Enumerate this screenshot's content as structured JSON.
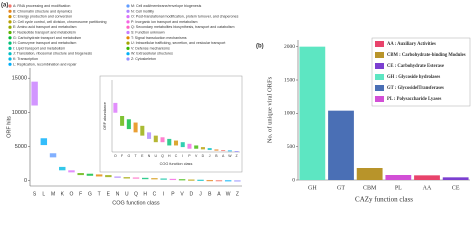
{
  "chart_data": [
    {
      "type": "range",
      "panel_label": "(a)",
      "xlabel": "COG function class",
      "ylabel": "ORF hits",
      "categories": [
        "S",
        "L",
        "M",
        "K",
        "O",
        "F",
        "G",
        "T",
        "E",
        "N",
        "U",
        "Q",
        "H",
        "C",
        "I",
        "P",
        "V",
        "D",
        "J",
        "B",
        "A",
        "W",
        "Z"
      ],
      "low": [
        11000,
        5200,
        3400,
        1500,
        1200,
        800,
        700,
        600,
        500,
        400,
        300,
        300,
        200,
        200,
        150,
        100,
        100,
        80,
        60,
        40,
        30,
        20,
        10
      ],
      "high": [
        14500,
        6200,
        4000,
        2000,
        1500,
        1100,
        1000,
        900,
        800,
        600,
        500,
        450,
        400,
        350,
        300,
        250,
        200,
        150,
        120,
        80,
        60,
        50,
        30
      ],
      "ylim": [
        -800,
        16500
      ],
      "yticks": [
        0,
        5000,
        10000,
        15000
      ],
      "legend": [
        {
          "label": "A: RNA processing and modification",
          "color": "#f4766d"
        },
        {
          "label": "B: Chromatin structure and dynamics",
          "color": "#e7851e"
        },
        {
          "label": "C: Energy production and conversion",
          "color": "#d39200"
        },
        {
          "label": "D: Cell cycle control, cell division, chromosome partitioning",
          "color": "#b79f00"
        },
        {
          "label": "E: Amino acid transport and metabolism",
          "color": "#93aa00"
        },
        {
          "label": "F: Nucleotide transport and metabolism",
          "color": "#5eb300"
        },
        {
          "label": "G: Carbohydrate transport and metabolism",
          "color": "#00ba38"
        },
        {
          "label": "H: Coenzyme transport and metabolism",
          "color": "#00bf74"
        },
        {
          "label": "I: Lipid transport and metabolism",
          "color": "#00c19f"
        },
        {
          "label": "J: Translation, ribosomal structure and biogenesis",
          "color": "#00bfc4"
        },
        {
          "label": "K: Transcription",
          "color": "#00b9e3"
        },
        {
          "label": "L: Replication, recombination and repair",
          "color": "#00adfa"
        },
        {
          "label": "M: Cell wall/membrane/envelope biogenesis",
          "color": "#619cff"
        },
        {
          "label": "N: Cell motility",
          "color": "#ae87ff"
        },
        {
          "label": "O: Post-translational modification, protein turnover, and chaperones",
          "color": "#db72fb"
        },
        {
          "label": "P: Inorganic ion transport and metabolism",
          "color": "#f564e3"
        },
        {
          "label": "Q: Secondary metabolites biosynthesis, transport and catabolism",
          "color": "#ff61c3"
        },
        {
          "label": "S: Function unknown",
          "color": "#c77cff"
        },
        {
          "label": "T: Signal transduction mechanisms",
          "color": "#e58700"
        },
        {
          "label": "U: Intracellular trafficking, secretion, and vesicular transport",
          "color": "#a3a500"
        },
        {
          "label": "V: Defense mechanisms",
          "color": "#39b600"
        },
        {
          "label": "W: Extracellular structures",
          "color": "#00b0f6"
        },
        {
          "label": "Z: Cytoskeleton",
          "color": "#9590ff"
        }
      ],
      "inset": {
        "ylabel": "ORF abundance",
        "xlabel": "COG function class",
        "ylim": [
          0,
          2200
        ]
      }
    },
    {
      "type": "bar",
      "panel_label": "(b)",
      "xlabel": "CAZy function class",
      "ylabel": "No. of unique viral ORFs",
      "categories": [
        "GH",
        "GT",
        "CBM",
        "PL",
        "AA",
        "CE"
      ],
      "values": [
        2000,
        1040,
        180,
        75,
        70,
        40
      ],
      "colors": [
        "#5de6c2",
        "#4a6fb5",
        "#b8942a",
        "#d24fd6",
        "#e8436b",
        "#7b3fd0"
      ],
      "ylim": [
        0,
        2100
      ],
      "yticks": [
        0,
        500,
        1000,
        1500,
        2000
      ],
      "legend": [
        {
          "label": "AA : Auxiliary Activities",
          "color": "#e8436b"
        },
        {
          "label": "CBM : Carbohydrate-binding Modules",
          "color": "#b8942a"
        },
        {
          "label": "CE : Carbohydrate Esterase",
          "color": "#7b3fd0"
        },
        {
          "label": "GH : Glycoside hydrolases",
          "color": "#5de6c2"
        },
        {
          "label": "GT : GlycosidelTransferases",
          "color": "#4a6fb5"
        },
        {
          "label": "PL : Polysaccharide Lyases",
          "color": "#d24fd6"
        }
      ]
    }
  ]
}
